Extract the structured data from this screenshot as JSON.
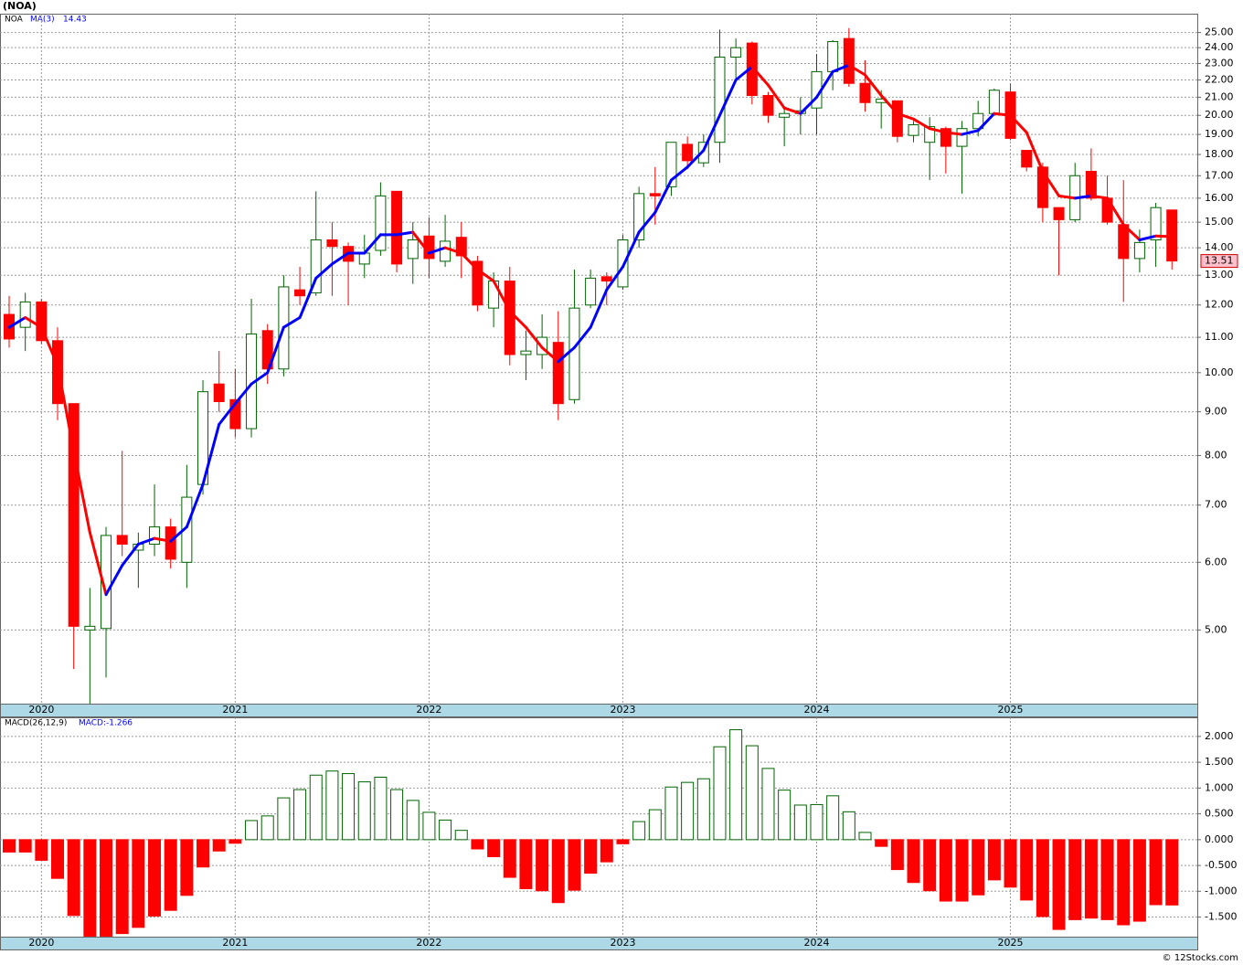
{
  "chart_data": [
    {
      "type": "candlestick",
      "title": "(NOA)",
      "symbol": "NOA",
      "log_scale": true,
      "grid": true,
      "categories": [
        null,
        null,
        "2020",
        null,
        null,
        null,
        null,
        null,
        null,
        null,
        null,
        null,
        null,
        null,
        "2021",
        null,
        null,
        null,
        null,
        null,
        null,
        null,
        null,
        null,
        null,
        null,
        "2022",
        null,
        null,
        null,
        null,
        null,
        null,
        null,
        null,
        null,
        null,
        null,
        "2023",
        null,
        null,
        null,
        null,
        null,
        null,
        null,
        null,
        null,
        null,
        null,
        "2024",
        null,
        null,
        null,
        null,
        null,
        null,
        null,
        null,
        null,
        null,
        null,
        "2025",
        null,
        null,
        null,
        null,
        null,
        null,
        null,
        null,
        null,
        null
      ],
      "open": [
        11.7,
        11.3,
        12.1,
        10.9,
        9.2,
        5.0,
        5.02,
        6.45,
        6.2,
        6.3,
        6.6,
        6.0,
        7.4,
        9.7,
        9.3,
        8.6,
        11.2,
        10.1,
        12.5,
        12.4,
        14.3,
        14.05,
        13.4,
        13.9,
        16.3,
        13.6,
        14.45,
        13.5,
        14.4,
        13.5,
        11.9,
        12.8,
        10.5,
        10.5,
        10.85,
        9.3,
        12.0,
        12.95,
        12.6,
        14.3,
        16.2,
        16.5,
        18.5,
        17.6,
        18.6,
        23.4,
        24.3,
        21.1,
        19.9,
        20.1,
        20.4,
        22.5,
        24.6,
        21.8,
        20.7,
        20.8,
        18.95,
        18.6,
        19.3,
        18.4,
        19.3,
        20.1,
        21.3,
        18.2,
        17.4,
        15.6,
        15.1,
        17.2,
        16.0,
        14.9,
        13.6,
        14.3,
        15.5
      ],
      "high": [
        12.3,
        12.4,
        12.2,
        11.3,
        9.2,
        5.6,
        6.6,
        8.1,
        6.5,
        7.4,
        6.75,
        7.8,
        9.8,
        10.6,
        10.1,
        12.2,
        11.4,
        13.0,
        13.3,
        16.3,
        15.0,
        14.2,
        14.5,
        16.7,
        16.3,
        15.0,
        15.2,
        15.3,
        15.0,
        13.7,
        13.1,
        13.3,
        11.2,
        11.7,
        11.8,
        13.2,
        13.2,
        13.1,
        14.5,
        16.5,
        17.4,
        18.6,
        18.9,
        19.0,
        25.2,
        24.6,
        24.4,
        21.3,
        20.4,
        21.0,
        23.6,
        24.5,
        25.3,
        23.2,
        21.4,
        20.8,
        19.7,
        19.9,
        19.4,
        19.7,
        20.8,
        21.5,
        21.8,
        18.2,
        17.6,
        15.6,
        17.6,
        18.3,
        17.0,
        16.8,
        14.7,
        15.8,
        15.5
      ],
      "low": [
        10.7,
        10.6,
        10.8,
        8.8,
        4.5,
        4.1,
        4.4,
        6.1,
        5.6,
        6.1,
        5.9,
        5.6,
        7.2,
        9.0,
        8.4,
        8.4,
        9.7,
        9.9,
        12.0,
        12.3,
        12.3,
        12.0,
        12.9,
        13.7,
        13.1,
        12.7,
        12.9,
        13.3,
        12.9,
        11.8,
        11.3,
        10.2,
        9.8,
        10.1,
        8.8,
        9.2,
        11.9,
        12.0,
        12.5,
        14.0,
        14.9,
        16.1,
        17.3,
        17.4,
        17.6,
        22.1,
        20.6,
        19.6,
        18.4,
        19.0,
        19.0,
        21.4,
        21.6,
        20.2,
        19.3,
        18.6,
        18.6,
        16.8,
        17.1,
        16.2,
        18.9,
        20.0,
        18.7,
        17.2,
        15.0,
        13.0,
        15.0,
        15.9,
        14.9,
        12.1,
        13.1,
        13.3,
        13.2
      ],
      "close": [
        10.95,
        12.1,
        10.9,
        9.2,
        5.05,
        5.05,
        6.45,
        6.3,
        6.3,
        6.6,
        6.05,
        7.15,
        9.5,
        9.25,
        8.6,
        11.1,
        10.1,
        12.6,
        12.3,
        14.3,
        14.05,
        13.5,
        13.8,
        16.1,
        13.4,
        14.3,
        13.6,
        14.25,
        13.7,
        12.0,
        12.8,
        10.5,
        10.6,
        11.0,
        9.2,
        11.9,
        12.9,
        12.8,
        14.3,
        16.2,
        16.1,
        18.6,
        17.7,
        18.6,
        23.4,
        24.0,
        21.1,
        20.0,
        20.1,
        20.25,
        22.5,
        24.4,
        21.8,
        20.7,
        20.9,
        18.9,
        19.5,
        19.4,
        18.4,
        19.3,
        20.1,
        21.4,
        18.8,
        17.4,
        15.6,
        15.1,
        17.0,
        16.0,
        15.0,
        13.6,
        14.2,
        15.6,
        13.51
      ],
      "up_color": "#006400",
      "down_color": "#ff0000",
      "series": [
        {
          "name": "MA(3)",
          "up_color": "#0000ff",
          "down_color": "#ff0000",
          "values": [
            11.3,
            11.6,
            11.3,
            10.2,
            8.1,
            6.5,
            5.5,
            5.95,
            6.3,
            6.4,
            6.35,
            6.6,
            7.4,
            8.7,
            9.2,
            9.7,
            10.0,
            11.3,
            11.6,
            12.9,
            13.4,
            13.8,
            13.8,
            14.5,
            14.5,
            14.6,
            13.8,
            14.0,
            13.8,
            13.2,
            12.8,
            11.8,
            11.3,
            10.7,
            10.3,
            10.7,
            11.3,
            12.5,
            13.3,
            14.6,
            15.4,
            16.8,
            17.4,
            18.2,
            20.0,
            22.0,
            22.8,
            21.7,
            20.4,
            20.1,
            21.0,
            22.5,
            22.9,
            22.3,
            21.1,
            20.1,
            19.8,
            19.3,
            19.1,
            19.0,
            19.2,
            20.1,
            20.0,
            19.1,
            17.2,
            16.1,
            16.0,
            16.1,
            16.0,
            14.9,
            14.3,
            14.45,
            14.43
          ]
        }
      ],
      "ylim": [
        4.1,
        26.3
      ],
      "yticks": [
        {
          "value": 5,
          "label": "5.00"
        },
        {
          "value": 6,
          "label": "6.00"
        },
        {
          "value": 7,
          "label": "7.00"
        },
        {
          "value": 8,
          "label": "8.00"
        },
        {
          "value": 9,
          "label": "9.00"
        },
        {
          "value": 10,
          "label": "10.00"
        },
        {
          "value": 11,
          "label": "11.00"
        },
        {
          "value": 12,
          "label": "12.00"
        },
        {
          "value": 13,
          "label": "13.00"
        },
        {
          "value": 14,
          "label": "14.00"
        },
        {
          "value": 15,
          "label": "15.00"
        },
        {
          "value": 16,
          "label": "16.00"
        },
        {
          "value": 17,
          "label": "17.00"
        },
        {
          "value": 18,
          "label": "18.00"
        },
        {
          "value": 19,
          "label": "19.00"
        },
        {
          "value": 20,
          "label": "20.00"
        },
        {
          "value": 21,
          "label": "21.00"
        },
        {
          "value": 22,
          "label": "22.00"
        },
        {
          "value": 23,
          "label": "23.00"
        },
        {
          "value": 24,
          "label": "24.00"
        },
        {
          "value": 25,
          "label": "25.00"
        }
      ]
    },
    {
      "type": "bar",
      "title": "MACD(26,12,9)",
      "legend": "MACD:-1.266",
      "grid": true,
      "pos_color": "#006400",
      "neg_color": "#ff0000",
      "values": [
        -0.24,
        -0.24,
        -0.4,
        -0.75,
        -1.47,
        -1.87,
        -1.87,
        -1.82,
        -1.7,
        -1.48,
        -1.37,
        -1.08,
        -0.53,
        -0.22,
        -0.07,
        0.37,
        0.46,
        0.81,
        0.97,
        1.25,
        1.33,
        1.28,
        1.12,
        1.21,
        0.97,
        0.76,
        0.53,
        0.38,
        0.18,
        -0.18,
        -0.33,
        -0.73,
        -0.95,
        -0.99,
        -1.22,
        -0.98,
        -0.65,
        -0.43,
        -0.08,
        0.35,
        0.58,
        1.02,
        1.11,
        1.18,
        1.8,
        2.13,
        1.82,
        1.38,
        0.96,
        0.67,
        0.68,
        0.85,
        0.54,
        0.14,
        -0.13,
        -0.58,
        -0.83,
        -0.99,
        -1.19,
        -1.19,
        -1.07,
        -0.78,
        -0.92,
        -1.17,
        -1.49,
        -1.74,
        -1.55,
        -1.52,
        -1.55,
        -1.65,
        -1.58,
        -1.26,
        -1.266
      ],
      "ylim": [
        -1.88,
        2.37
      ],
      "yticks": [
        {
          "value": -1.5,
          "label": "-1.500"
        },
        {
          "value": -1,
          "label": "-1.000"
        },
        {
          "value": -0.5,
          "label": "-0.500"
        },
        {
          "value": 0,
          "label": "0.000"
        },
        {
          "value": 0.5,
          "label": "0.500"
        },
        {
          "value": 1,
          "label": "1.000"
        },
        {
          "value": 1.5,
          "label": "1.500"
        },
        {
          "value": 2,
          "label": "2.000"
        }
      ]
    },
    {
      "type": "credit",
      "text": "© 12Stocks.com"
    }
  ]
}
